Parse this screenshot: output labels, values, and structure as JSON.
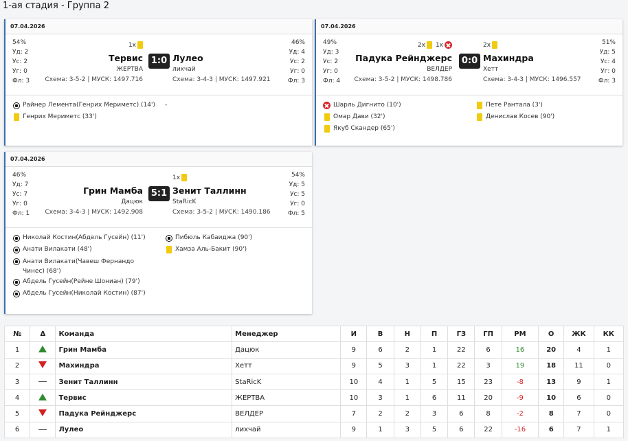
{
  "stage_title": "1-ая стадия - Группа 2",
  "matches": [
    {
      "date": "07.04.2026",
      "home": {
        "name": "Тервис",
        "manager": "ЖЕРТВА",
        "scheme": "Схема: 3-5-2 | МУСК: 1497.716",
        "poss": "54%",
        "ud": "Уд: 2",
        "us": "Ус: 2",
        "ug": "Уг: 0",
        "fl": "Фл: 3",
        "cards": "1x"
      },
      "away": {
        "name": "Лулео",
        "manager": "лихчай",
        "scheme": "Схема: 3-4-3 | МУСК: 1497.921",
        "poss": "46%",
        "ud": "Уд: 4",
        "us": "Ус: 2",
        "ug": "Уг: 0",
        "fl": "Фл: 3",
        "cards": ""
      },
      "score": "1:0",
      "home_events": [
        "Райнер Лемента(Генрих Мериметс) (14')",
        "Генрих Мериметс (33')"
      ],
      "away_events": [
        "-"
      ]
    },
    {
      "date": "07.04.2026",
      "home": {
        "name": "Падука Рейнджерс",
        "manager": "ВЕЛДЕР",
        "scheme": "Схема: 3-5-2 | МУСК: 1498.786",
        "poss": "49%",
        "ud": "Уд: 3",
        "us": "Ус: 2",
        "ug": "Уг: 0",
        "fl": "Фл: 4",
        "cards_y": "2x",
        "cards_r": "1x"
      },
      "away": {
        "name": "Махиндра",
        "manager": "Хетт",
        "scheme": "Схема: 3-4-3 | МУСК: 1496.557",
        "poss": "51%",
        "ud": "Уд: 5",
        "us": "Ус: 4",
        "ug": "Уг: 0",
        "fl": "Фл: 3",
        "cards": "2x"
      },
      "score": "0:0",
      "home_events": [
        "Шарль Дигнито (10')",
        "Омар Дави (32')",
        "Якуб Скандер (65')"
      ],
      "away_events": [
        "Пете Рантала (3')",
        "Денислав Косев (90')"
      ]
    },
    {
      "date": "07.04.2026",
      "home": {
        "name": "Грин Мамба",
        "manager": "Дацюк",
        "scheme": "Схема: 3-4-3 | МУСК: 1492.908",
        "poss": "46%",
        "ud": "Уд: 7",
        "us": "Ус: 7",
        "ug": "Уг: 0",
        "fl": "Фл: 1",
        "cards": ""
      },
      "away": {
        "name": "Зенит Таллинн",
        "manager": "StaRicK",
        "scheme": "Схема: 3-5-2 | МУСК: 1490.186",
        "poss": "54%",
        "ud": "Уд: 5",
        "us": "Ус: 5",
        "ug": "Уг: 0",
        "fl": "Фл: 5",
        "cards": "1x"
      },
      "score": "5:1",
      "home_events": [
        "Николай Костин(Абдель Гусейн) (11')",
        "Анати Вилакати (48')",
        "Анати Вилакати(Чавеш Фернандо Чинес) (68')",
        "Абдель Гусейн(Рейне Шониан) (79')",
        "Абдель Гусейн(Николай Костин) (87')"
      ],
      "away_events": [
        "Пибюль Кабаиджа (90')",
        "Хамза Аль-Бакит (90')"
      ]
    }
  ],
  "table": {
    "headers": [
      "№",
      "Δ",
      "Команда",
      "Менеджер",
      "И",
      "В",
      "Н",
      "П",
      "ГЗ",
      "ГП",
      "РМ",
      "О",
      "ЖК",
      "КК"
    ],
    "rows": [
      {
        "n": "1",
        "trend": "up",
        "team": "Грин Мамба",
        "mgr": "Дацюк",
        "i": "9",
        "w": "6",
        "d": "2",
        "l": "1",
        "gf": "22",
        "ga": "6",
        "gd": "16",
        "pts": "20",
        "yc": "4",
        "rc": "1"
      },
      {
        "n": "2",
        "trend": "down",
        "team": "Махиндра",
        "mgr": "Хетт",
        "i": "9",
        "w": "5",
        "d": "3",
        "l": "1",
        "gf": "22",
        "ga": "3",
        "gd": "19",
        "pts": "18",
        "yc": "11",
        "rc": "0"
      },
      {
        "n": "3",
        "trend": "same",
        "team": "Зенит Таллинн",
        "mgr": "StaRicK",
        "i": "10",
        "w": "4",
        "d": "1",
        "l": "5",
        "gf": "15",
        "ga": "23",
        "gd": "-8",
        "pts": "13",
        "yc": "9",
        "rc": "1"
      },
      {
        "n": "4",
        "trend": "up",
        "team": "Тервис",
        "mgr": "ЖЕРТВА",
        "i": "10",
        "w": "3",
        "d": "1",
        "l": "6",
        "gf": "11",
        "ga": "20",
        "gd": "-9",
        "pts": "10",
        "yc": "6",
        "rc": "0"
      },
      {
        "n": "5",
        "trend": "down",
        "team": "Падука Рейнджерс",
        "mgr": "ВЕЛДЕР",
        "i": "7",
        "w": "2",
        "d": "2",
        "l": "3",
        "gf": "6",
        "ga": "8",
        "gd": "-2",
        "pts": "8",
        "yc": "7",
        "rc": "0"
      },
      {
        "n": "6",
        "trend": "same",
        "team": "Лулео",
        "mgr": "лихчай",
        "i": "9",
        "w": "1",
        "d": "3",
        "l": "5",
        "gf": "6",
        "ga": "22",
        "gd": "-16",
        "pts": "6",
        "yc": "7",
        "rc": "1"
      }
    ]
  },
  "colors": {
    "accent": "#3d6fb0",
    "positive": "#2e8b2e",
    "negative": "#d42020",
    "yellow_card": "#f1cb10",
    "red_card": "#d8262b"
  }
}
